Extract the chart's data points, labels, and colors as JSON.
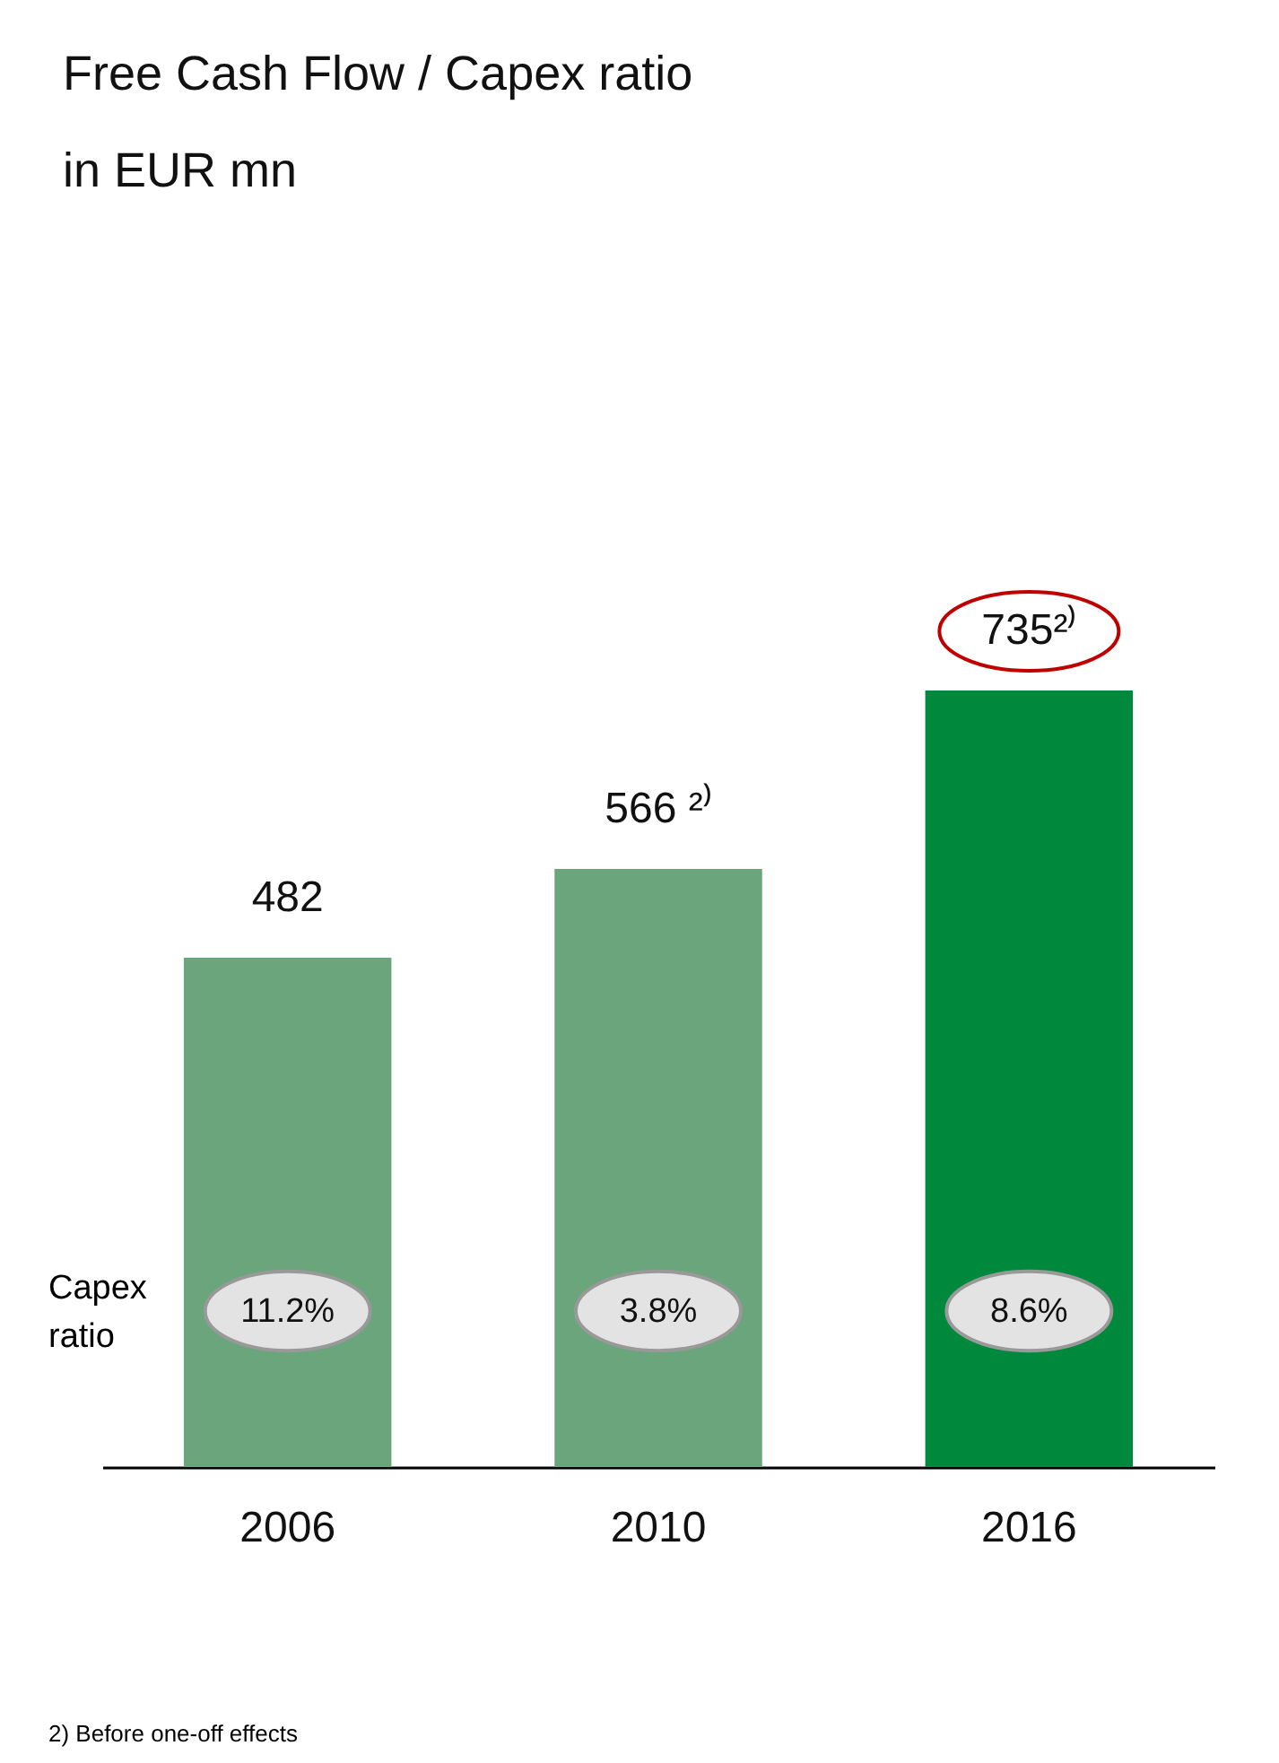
{
  "chart_data": {
    "type": "bar",
    "title": "Free Cash Flow / Capex ratio",
    "subtitle": "in EUR mn",
    "categories": [
      "2006",
      "2010",
      "2016"
    ],
    "values": [
      482,
      566,
      735
    ],
    "colors": [
      "#6aa57b",
      "#6aa57b",
      "#00893c"
    ],
    "value_labels": [
      "482",
      "566 ²⁾",
      "735²⁾"
    ],
    "annotations": [
      "11.2%",
      "3.8%",
      "8.6%",
      "Capex ratio",
      "2) Before one-off effects"
    ],
    "grid": false,
    "legend": false
  }
}
